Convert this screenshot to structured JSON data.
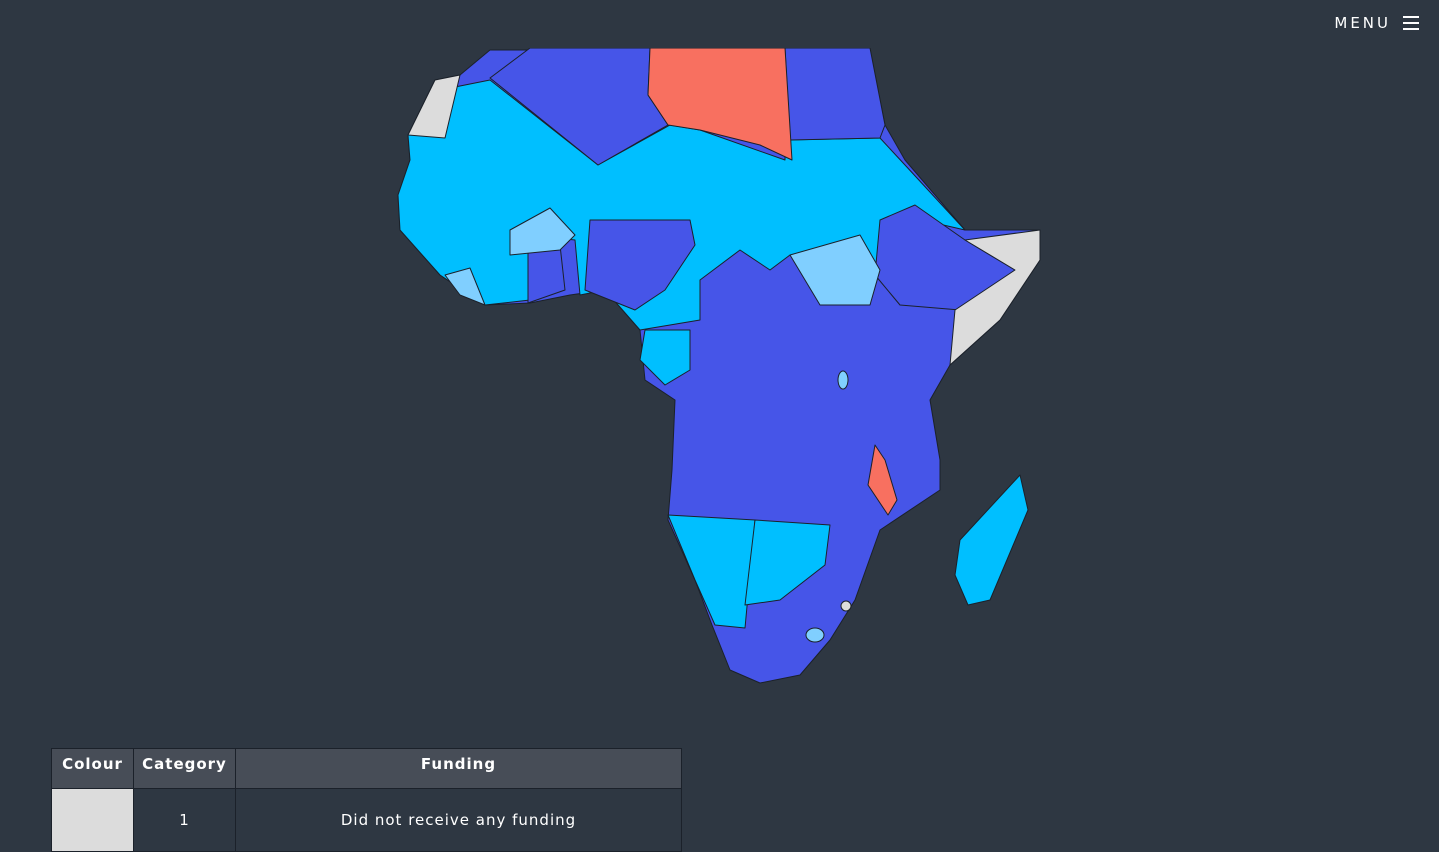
{
  "menu": {
    "label": "MENU"
  },
  "legend": {
    "headers": [
      "Colour",
      "Category",
      "Funding"
    ],
    "rows": [
      {
        "colour": "#dcdcdc",
        "category": "1",
        "funding": "Did not receive any funding"
      }
    ]
  }
}
